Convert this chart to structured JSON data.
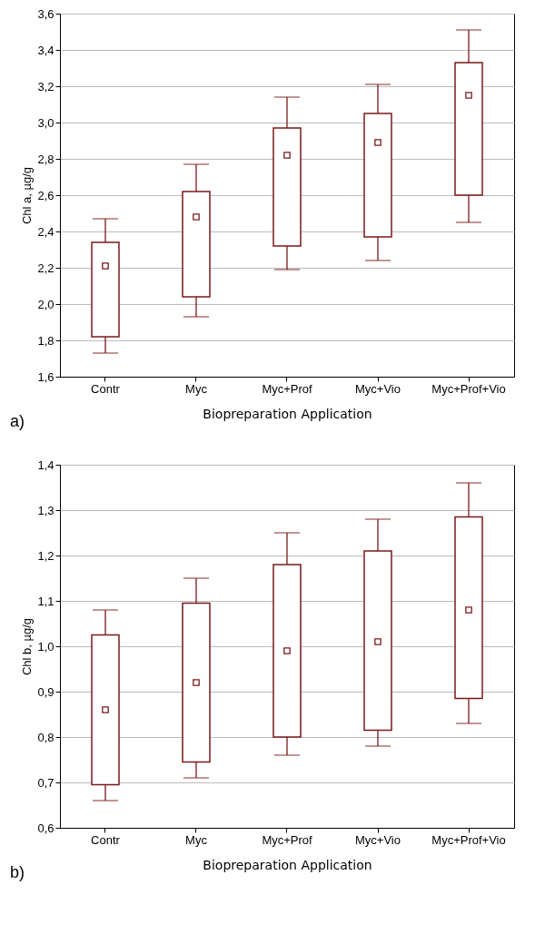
{
  "chart_data": [
    {
      "type": "box",
      "xlabel": "Biopreparation Application",
      "ylabel": "Chl a, µg/g",
      "categories": [
        "Contr",
        "Myc",
        "Myc+Prof",
        "Myc+Vio",
        "Myc+Prof+Vio"
      ],
      "color": "#7a1a1a",
      "grid": "y",
      "marker": "square",
      "boxes": [
        {
          "low": 1.73,
          "q1": 1.82,
          "median": 2.21,
          "q3": 2.34,
          "high": 2.47
        },
        {
          "low": 1.93,
          "q1": 2.04,
          "median": 2.48,
          "q3": 2.62,
          "high": 2.77
        },
        {
          "low": 2.19,
          "q1": 2.32,
          "median": 2.82,
          "q3": 2.97,
          "high": 3.14
        },
        {
          "low": 2.24,
          "q1": 2.37,
          "median": 2.89,
          "q3": 3.05,
          "high": 3.21
        },
        {
          "low": 2.45,
          "q1": 2.6,
          "median": 3.15,
          "q3": 3.33,
          "high": 3.51
        }
      ],
      "ylim": [
        1.6,
        3.6
      ],
      "yticks": [
        {
          "value": 1.6,
          "label": "1,6"
        },
        {
          "value": 1.8,
          "label": "1,8"
        },
        {
          "value": 2.0,
          "label": "2,0"
        },
        {
          "value": 2.2,
          "label": "2,2"
        },
        {
          "value": 2.4,
          "label": "2,4"
        },
        {
          "value": 2.6,
          "label": "2,6"
        },
        {
          "value": 2.8,
          "label": "2,8"
        },
        {
          "value": 3.0,
          "label": "3,0"
        },
        {
          "value": 3.2,
          "label": "3,2"
        },
        {
          "value": 3.4,
          "label": "3,4"
        },
        {
          "value": 3.6,
          "label": "3,6"
        }
      ],
      "annotations": [
        "a)"
      ]
    },
    {
      "type": "box",
      "xlabel": "Biopreparation Application",
      "ylabel": "Chl b, µg/g",
      "categories": [
        "Contr",
        "Myc",
        "Myc+Prof",
        "Myc+Vio",
        "Myc+Prof+Vio"
      ],
      "color": "#7a1a1a",
      "grid": "y",
      "marker": "square",
      "boxes": [
        {
          "low": 0.66,
          "q1": 0.695,
          "median": 0.86,
          "q3": 1.025,
          "high": 1.08
        },
        {
          "low": 0.71,
          "q1": 0.745,
          "median": 0.92,
          "q3": 1.095,
          "high": 1.15
        },
        {
          "low": 0.76,
          "q1": 0.8,
          "median": 0.99,
          "q3": 1.18,
          "high": 1.25
        },
        {
          "low": 0.78,
          "q1": 0.815,
          "median": 1.01,
          "q3": 1.21,
          "high": 1.28
        },
        {
          "low": 0.83,
          "q1": 0.885,
          "median": 1.08,
          "q3": 1.285,
          "high": 1.36
        }
      ],
      "ylim": [
        0.6,
        1.4
      ],
      "yticks": [
        {
          "value": 0.6,
          "label": "0,6"
        },
        {
          "value": 0.7,
          "label": "0,7"
        },
        {
          "value": 0.8,
          "label": "0,8"
        },
        {
          "value": 0.9,
          "label": "0,9"
        },
        {
          "value": 1.0,
          "label": "1,0"
        },
        {
          "value": 1.1,
          "label": "1,1"
        },
        {
          "value": 1.2,
          "label": "1,2"
        },
        {
          "value": 1.3,
          "label": "1,3"
        },
        {
          "value": 1.4,
          "label": "1,4"
        }
      ],
      "annotations": [
        "b)"
      ]
    }
  ]
}
